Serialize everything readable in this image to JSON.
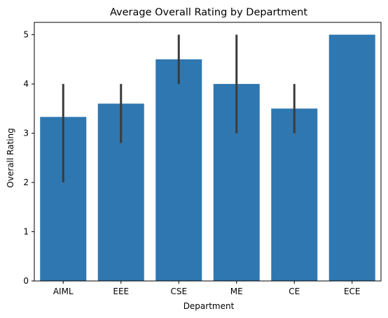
{
  "chart_data": {
    "type": "bar",
    "title": "Average Overall Rating by Department",
    "xlabel": "Department",
    "ylabel": "Overall Rating",
    "categories": [
      "AIML",
      "EEE",
      "CSE",
      "ME",
      "CE",
      "ECE"
    ],
    "values": [
      3.33,
      3.6,
      4.5,
      4.0,
      3.5,
      5.0
    ],
    "error_bars": [
      [
        2.0,
        4.0
      ],
      [
        2.8,
        4.0
      ],
      [
        4.0,
        5.0
      ],
      [
        3.0,
        5.0
      ],
      [
        3.0,
        4.0
      ],
      null
    ],
    "ylim": [
      0,
      5.25
    ],
    "yticks": [
      0,
      1,
      2,
      3,
      4,
      5
    ],
    "grid": false,
    "bar_color": "#2f77b0",
    "errorbar_color": "#3b3b3b"
  }
}
